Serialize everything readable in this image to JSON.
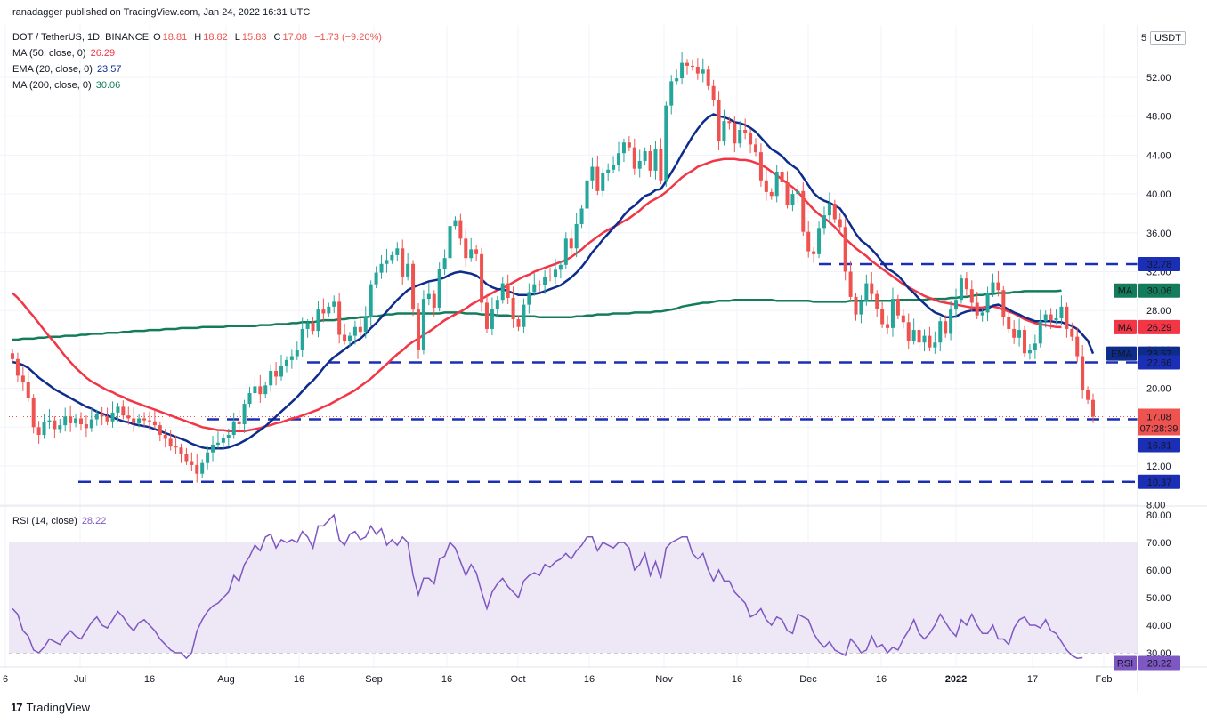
{
  "publisher_line": "ranadagger published on TradingView.com, Jan 24, 2022 16:31 UTC",
  "header": {
    "symbol": "DOT / TetherUS, 1D, BINANCE",
    "o_label": "O",
    "o_value": "18.81",
    "h_label": "H",
    "h_value": "18.82",
    "l_label": "L",
    "l_value": "15.83",
    "c_label": "C",
    "c_value": "17.08",
    "change": "−1.73 (−9.20%)",
    "ind_ma50": "MA (50, close, 0)",
    "ind_ma50_val": "26.29",
    "ind_ema20": "EMA (20, close, 0)",
    "ind_ema20_val": "23.57",
    "ind_ma200": "MA (200, close, 0)",
    "ind_ma200_val": "30.06"
  },
  "currency_button": "USDT",
  "price_axis_top_partial": "5",
  "rsi_header": "RSI (14, close)",
  "rsi_header_val": "28.22",
  "footer": {
    "logo": "17",
    "brand": "TradingView"
  },
  "colors": {
    "up": "#26a69a",
    "down": "#ef5350",
    "ma50": "#f23645",
    "ema20": "#0d2c8c",
    "ma200": "#137d5b",
    "level": "#1a2fb5",
    "rsi_line": "#7e57c2",
    "rsi_band": "#ede7f6",
    "grid": "#f0f3fa",
    "text": "#131722"
  },
  "chart_data": {
    "type": "candlestick",
    "symbol": "DOT / TetherUS",
    "timeframe": "1D",
    "exchange": "BINANCE",
    "y_ticks": [
      "52.00",
      "48.00",
      "44.00",
      "40.00",
      "36.00",
      "32.00",
      "28.00",
      "24.00",
      "20.00",
      "16.00",
      "12.00",
      "8.00"
    ],
    "x_ticks": [
      "6",
      "Jul",
      "16",
      "Aug",
      "16",
      "Sep",
      "16",
      "Oct",
      "16",
      "Nov",
      "16",
      "Dec",
      "16",
      "2022",
      "17",
      "Feb"
    ],
    "ylim": [
      8,
      55
    ],
    "last_price": "17.08",
    "countdown": "07:28:39",
    "horizontal_levels": [
      "32.78",
      "22.66",
      "16.81",
      "10.37"
    ],
    "indicator_labels": [
      {
        "name": "MA",
        "value": "30.06",
        "color": "#137d5b"
      },
      {
        "name": "MA",
        "value": "26.29",
        "color": "#f23645"
      },
      {
        "name": "EMA",
        "value": "23.57",
        "color": "#0d2c8c"
      }
    ],
    "closes": [
      23.0,
      21.3,
      20.6,
      19.0,
      16.0,
      15.2,
      16.5,
      16.7,
      15.8,
      16.2,
      17.1,
      16.4,
      16.9,
      16.3,
      15.9,
      16.8,
      17.4,
      17.1,
      16.6,
      17.5,
      18.1,
      17.2,
      16.9,
      16.4,
      16.9,
      16.7,
      16.6,
      16.2,
      15.2,
      14.8,
      14.0,
      13.9,
      13.2,
      12.5,
      12.1,
      11.2,
      12.3,
      13.4,
      14.2,
      14.4,
      14.9,
      15.2,
      16.6,
      16.3,
      18.4,
      19.5,
      20.2,
      19.4,
      20.3,
      21.8,
      21.2,
      22.3,
      22.9,
      23.3,
      23.9,
      26.1,
      26.7,
      25.9,
      28.1,
      27.7,
      28.4,
      28.9,
      25.5,
      24.9,
      25.4,
      26.3,
      25.8,
      27.3,
      30.7,
      31.9,
      32.8,
      33.2,
      33.7,
      34.4,
      31.5,
      32.8,
      28.1,
      23.9,
      29.2,
      29.7,
      28.3,
      32.3,
      33.4,
      36.7,
      37.3,
      35.4,
      33.4,
      34.3,
      33.8,
      28.8,
      26.1,
      28.2,
      29.1,
      30.8,
      29.3,
      27.1,
      26.3,
      28.6,
      29.9,
      30.7,
      30.6,
      31.5,
      31.4,
      32.2,
      32.7,
      35.4,
      34.4,
      36.9,
      38.5,
      41.4,
      42.8,
      40.3,
      42.2,
      42.5,
      43.0,
      44.2,
      45.3,
      44.8,
      42.6,
      43.4,
      44.4,
      42.4,
      44.6,
      41.4,
      49.1,
      51.6,
      51.9,
      53.5,
      53.2,
      53.1,
      52.4,
      52.8,
      51.1,
      49.7,
      45.4,
      47.5,
      47.3,
      45.2,
      46.6,
      46.3,
      45.1,
      44.3,
      41.4,
      40.2,
      39.8,
      42.3,
      41.2,
      38.9,
      40.0,
      40.3,
      36.1,
      34.1,
      33.8,
      36.5,
      37.8,
      39.0,
      37.4,
      36.6,
      32.0,
      29.4,
      27.6,
      28.9,
      30.8,
      29.7,
      28.2,
      26.6,
      26.2,
      29.2,
      27.5,
      26.8,
      24.9,
      26.0,
      24.7,
      25.4,
      24.2,
      24.7,
      26.9,
      25.6,
      28.1,
      29.1,
      31.3,
      30.2,
      28.8,
      27.5,
      27.8,
      29.8,
      30.9,
      30.1,
      27.3,
      26.1,
      25.2,
      26.0,
      23.6,
      23.9,
      24.6,
      26.9,
      27.6,
      27.0,
      27.2,
      28.4,
      26.1,
      25.3,
      23.3,
      19.8,
      18.8,
      17.08
    ],
    "ma50": [
      29.8,
      29.3,
      28.7,
      28.0,
      27.4,
      26.7,
      26.0,
      25.3,
      24.7,
      24.0,
      23.3,
      22.7,
      22.1,
      21.6,
      21.1,
      20.7,
      20.4,
      20.1,
      19.8,
      19.6,
      19.3,
      19.1,
      18.8,
      18.6,
      18.4,
      18.2,
      18.0,
      17.8,
      17.6,
      17.4,
      17.2,
      17.0,
      16.8,
      16.6,
      16.4,
      16.2,
      16.0,
      15.9,
      15.8,
      15.7,
      15.7,
      15.6,
      15.6,
      15.6,
      15.6,
      15.7,
      15.8,
      15.9,
      16.1,
      16.2,
      16.4,
      16.5,
      16.7,
      16.9,
      17.0,
      17.2,
      17.4,
      17.6,
      17.8,
      18.1,
      18.3,
      18.6,
      18.9,
      19.2,
      19.5,
      19.8,
      20.2,
      20.6,
      21.0,
      21.5,
      22.0,
      22.5,
      23.0,
      23.5,
      23.9,
      24.4,
      24.8,
      25.1,
      25.5,
      25.8,
      26.2,
      26.6,
      27.0,
      27.3,
      27.6,
      27.9,
      28.2,
      28.6,
      28.9,
      29.2,
      29.5,
      29.8,
      30.1,
      30.3,
      30.6,
      30.9,
      31.2,
      31.5,
      31.7,
      32.0,
      32.2,
      32.4,
      32.6,
      32.8,
      33.0,
      33.2,
      33.5,
      33.9,
      34.3,
      34.8,
      35.2,
      35.6,
      36.0,
      36.3,
      36.6,
      36.9,
      37.2,
      37.5,
      37.9,
      38.3,
      38.8,
      39.2,
      39.5,
      39.8,
      40.2,
      40.7,
      41.2,
      41.7,
      42.1,
      42.4,
      42.8,
      43.0,
      43.2,
      43.4,
      43.5,
      43.6,
      43.6,
      43.6,
      43.5,
      43.5,
      43.4,
      43.2,
      43.0,
      42.7,
      42.3,
      41.9,
      41.5,
      41.1,
      40.7,
      40.2,
      39.6,
      39.0,
      38.4,
      37.9,
      37.5,
      37.1,
      36.6,
      36.0,
      35.4,
      34.9,
      34.4,
      34.0,
      33.6,
      33.1,
      32.7,
      32.3,
      31.9,
      31.5,
      31.1,
      30.7,
      30.4,
      30.1,
      29.8,
      29.5,
      29.3,
      29.1,
      28.9,
      28.8,
      28.7,
      28.6,
      28.5,
      28.4,
      28.3,
      28.3,
      28.3,
      28.4,
      28.4,
      28.3,
      28.1,
      27.9,
      27.7,
      27.4,
      27.1,
      26.9,
      26.7,
      26.6,
      26.5,
      26.4,
      26.3,
      26.29
    ],
    "ema20": [
      22.7,
      22.6,
      22.4,
      22.1,
      21.6,
      21.1,
      20.7,
      20.3,
      19.9,
      19.6,
      19.3,
      19.0,
      18.7,
      18.4,
      18.1,
      17.9,
      17.6,
      17.4,
      17.2,
      17.0,
      16.8,
      16.6,
      16.5,
      16.3,
      16.2,
      16.1,
      16.0,
      15.8,
      15.6,
      15.4,
      15.2,
      15.0,
      14.8,
      14.6,
      14.3,
      14.1,
      13.9,
      13.8,
      13.8,
      13.8,
      13.8,
      13.9,
      14.1,
      14.3,
      14.6,
      14.9,
      15.3,
      15.7,
      16.1,
      16.6,
      17.1,
      17.6,
      18.1,
      18.6,
      19.1,
      19.7,
      20.3,
      20.8,
      21.4,
      22.1,
      22.7,
      23.2,
      23.6,
      24.0,
      24.4,
      24.8,
      25.1,
      25.6,
      26.2,
      26.7,
      27.3,
      27.9,
      28.5,
      29.1,
      29.6,
      30.1,
      30.4,
      30.6,
      30.8,
      31.0,
      31.1,
      31.2,
      31.4,
      31.7,
      31.9,
      32.0,
      31.9,
      31.8,
      31.6,
      31.2,
      30.7,
      30.4,
      30.2,
      30.2,
      30.0,
      29.8,
      29.6,
      29.6,
      29.6,
      29.7,
      29.8,
      30.0,
      30.2,
      30.4,
      30.6,
      31.0,
      31.4,
      31.9,
      32.5,
      33.2,
      34.0,
      34.6,
      35.3,
      35.9,
      36.5,
      37.1,
      37.8,
      38.4,
      38.8,
      39.3,
      39.8,
      40.0,
      40.4,
      40.5,
      41.3,
      42.2,
      43.1,
      44.1,
      45.0,
      45.9,
      46.7,
      47.4,
      47.9,
      48.2,
      48.0,
      47.9,
      47.7,
      47.4,
      47.3,
      47.1,
      46.8,
      46.4,
      45.8,
      45.2,
      44.6,
      44.3,
      43.9,
      43.3,
      42.9,
      42.5,
      41.7,
      40.9,
      40.1,
      39.6,
      39.3,
      39.1,
      38.8,
      38.5,
      37.7,
      36.8,
      35.9,
      35.2,
      34.8,
      34.3,
      33.7,
      33.0,
      32.3,
      32.0,
      31.6,
      31.0,
      30.3,
      29.8,
      29.2,
      28.7,
      28.2,
      27.8,
      27.6,
      27.3,
      27.3,
      27.4,
      27.7,
      27.9,
      28.0,
      28.0,
      28.0,
      28.2,
      28.5,
      28.6,
      28.4,
      28.1,
      27.8,
      27.6,
      27.3,
      27.1,
      26.9,
      26.9,
      26.9,
      26.9,
      26.8,
      26.8,
      26.6,
      26.4,
      26.1,
      25.5,
      24.9,
      23.57
    ],
    "ma200": [
      25.0,
      25.0,
      25.1,
      25.1,
      25.1,
      25.2,
      25.2,
      25.3,
      25.3,
      25.3,
      25.4,
      25.4,
      25.4,
      25.5,
      25.5,
      25.6,
      25.6,
      25.6,
      25.7,
      25.7,
      25.7,
      25.8,
      25.8,
      25.9,
      25.9,
      25.9,
      26.0,
      26.0,
      26.0,
      26.1,
      26.1,
      26.1,
      26.2,
      26.2,
      26.2,
      26.2,
      26.3,
      26.3,
      26.3,
      26.3,
      26.3,
      26.4,
      26.4,
      26.4,
      26.4,
      26.4,
      26.4,
      26.5,
      26.5,
      26.5,
      26.6,
      26.6,
      26.6,
      26.7,
      26.7,
      26.8,
      26.8,
      26.8,
      26.9,
      27.0,
      27.0,
      27.0,
      27.1,
      27.1,
      27.2,
      27.2,
      27.3,
      27.3,
      27.4,
      27.4,
      27.5,
      27.6,
      27.6,
      27.7,
      27.7,
      27.7,
      27.7,
      27.7,
      27.7,
      27.7,
      27.7,
      27.7,
      27.8,
      27.8,
      27.8,
      27.8,
      27.7,
      27.7,
      27.7,
      27.6,
      27.6,
      27.6,
      27.5,
      27.5,
      27.5,
      27.4,
      27.4,
      27.4,
      27.4,
      27.4,
      27.3,
      27.3,
      27.3,
      27.3,
      27.3,
      27.3,
      27.3,
      27.4,
      27.4,
      27.5,
      27.5,
      27.6,
      27.6,
      27.6,
      27.7,
      27.7,
      27.7,
      27.7,
      27.8,
      27.8,
      27.8,
      27.8,
      27.9,
      27.9,
      28.0,
      28.1,
      28.2,
      28.4,
      28.5,
      28.6,
      28.7,
      28.8,
      28.8,
      28.9,
      29.0,
      29.0,
      29.0,
      29.1,
      29.1,
      29.1,
      29.1,
      29.1,
      29.1,
      29.1,
      29.1,
      29.0,
      29.0,
      29.0,
      29.0,
      29.0,
      29.0,
      29.0,
      28.9,
      28.9,
      28.9,
      28.9,
      28.9,
      28.9,
      28.9,
      29.0,
      29.0,
      29.0,
      29.0,
      29.0,
      29.0,
      29.0,
      29.0,
      29.0,
      29.1,
      29.1,
      29.1,
      29.1,
      29.1,
      29.1,
      29.2,
      29.2,
      29.2,
      29.2,
      29.3,
      29.3,
      29.4,
      29.4,
      29.5,
      29.6,
      29.6,
      29.7,
      29.7,
      29.8,
      29.8,
      29.8,
      29.9,
      29.9,
      30.0,
      30.0,
      30.0,
      30.0,
      30.0,
      30.0,
      30.0,
      30.06
    ],
    "rsi": {
      "label": "RSI (14, close)",
      "value": "28.22",
      "band": [
        30,
        70
      ],
      "y_ticks": [
        "80.00",
        "70.00",
        "60.00",
        "50.00",
        "40.00",
        "30.00"
      ],
      "values": [
        46,
        44,
        38,
        36,
        31,
        30,
        32,
        35,
        34,
        33,
        36,
        38,
        36,
        35,
        38,
        41,
        43,
        40,
        39,
        42,
        45,
        43,
        40,
        38,
        41,
        42,
        40,
        38,
        35,
        33,
        31,
        30,
        30,
        28,
        30,
        38,
        42,
        45,
        47,
        48,
        50,
        52,
        58,
        56,
        62,
        65,
        69,
        67,
        72,
        73,
        68,
        71,
        70,
        71,
        70,
        74,
        72,
        68,
        76,
        76,
        78,
        80,
        71,
        69,
        73,
        74,
        71,
        72,
        76,
        73,
        75,
        69,
        71,
        69,
        72,
        70,
        58,
        51,
        57,
        57,
        55,
        64,
        65,
        70,
        68,
        63,
        58,
        62,
        59,
        52,
        46,
        52,
        55,
        57,
        54,
        52,
        50,
        56,
        58,
        59,
        58,
        62,
        61,
        63,
        64,
        66,
        64,
        67,
        69,
        72,
        72,
        67,
        70,
        69,
        68,
        70,
        70,
        68,
        60,
        62,
        66,
        58,
        63,
        57,
        68,
        70,
        71,
        72,
        72,
        66,
        64,
        66,
        60,
        56,
        60,
        56,
        56,
        52,
        50,
        48,
        43,
        44,
        46,
        42,
        40,
        43,
        42,
        38,
        37,
        44,
        43,
        42,
        37,
        34,
        32,
        34,
        31,
        30,
        29,
        35,
        33,
        30,
        31,
        36,
        32,
        33,
        30,
        32,
        31,
        35,
        38,
        42,
        37,
        35,
        37,
        40,
        44,
        41,
        38,
        36,
        42,
        40,
        44,
        40,
        37,
        37,
        40,
        35,
        35,
        33,
        39,
        42,
        43,
        40,
        40,
        39,
        42,
        38,
        37,
        34,
        31,
        29,
        28,
        28.22
      ]
    }
  }
}
